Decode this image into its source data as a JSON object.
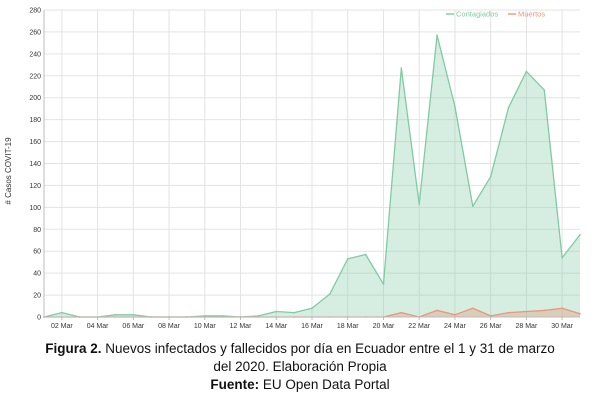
{
  "chart_data": {
    "type": "area",
    "ylabel": "# Casos COVIT-19",
    "ylim": [
      0,
      280
    ],
    "yticks": [
      0,
      20,
      40,
      60,
      80,
      100,
      120,
      140,
      160,
      180,
      200,
      220,
      240,
      260,
      280
    ],
    "x": [
      "01 Mar",
      "02 Mar",
      "03 Mar",
      "04 Mar",
      "05 Mar",
      "06 Mar",
      "07 Mar",
      "08 Mar",
      "09 Mar",
      "10 Mar",
      "11 Mar",
      "12 Mar",
      "13 Mar",
      "14 Mar",
      "15 Mar",
      "16 Mar",
      "17 Mar",
      "18 Mar",
      "19 Mar",
      "20 Mar",
      "21 Mar",
      "22 Mar",
      "23 Mar",
      "24 Mar",
      "25 Mar",
      "26 Mar",
      "27 Mar",
      "28 Mar",
      "29 Mar",
      "30 Mar",
      "31 Mar"
    ],
    "xticks": [
      "02 Mar",
      "04 Mar",
      "06 Mar",
      "08 Mar",
      "10 Mar",
      "12 Mar",
      "14 Mar",
      "16 Mar",
      "18 Mar",
      "20 Mar",
      "22 Mar",
      "24 Mar",
      "26 Mar",
      "28 Mar",
      "30 Mar"
    ],
    "series": [
      {
        "name": "Contagiados",
        "color": "#7fcba3",
        "values": [
          0,
          4,
          0,
          0,
          2,
          2,
          0,
          0,
          0,
          1,
          1,
          0,
          1,
          5,
          4,
          8,
          21,
          53,
          57,
          30,
          227,
          103,
          257,
          192,
          101,
          128,
          191,
          224,
          207,
          54,
          75
        ]
      },
      {
        "name": "Muertos",
        "color": "#e8977b",
        "values": [
          0,
          0,
          0,
          0,
          0,
          0,
          0,
          0,
          0,
          0,
          0,
          0,
          0,
          0,
          0,
          0,
          0,
          0,
          0,
          0,
          4,
          0,
          6,
          2,
          8,
          1,
          4,
          5,
          6,
          8,
          3
        ]
      }
    ],
    "legend": "top-right",
    "grid": true
  },
  "caption": {
    "figure_label": "Figura 2.",
    "line1_text": " Nuevos infectados y fallecidos por día en Ecuador entre el 1 y 31 de marzo",
    "line2_text": "del 2020. Elaboración Propia",
    "source_label": "Fuente:",
    "source_text": " EU Open Data Portal"
  }
}
